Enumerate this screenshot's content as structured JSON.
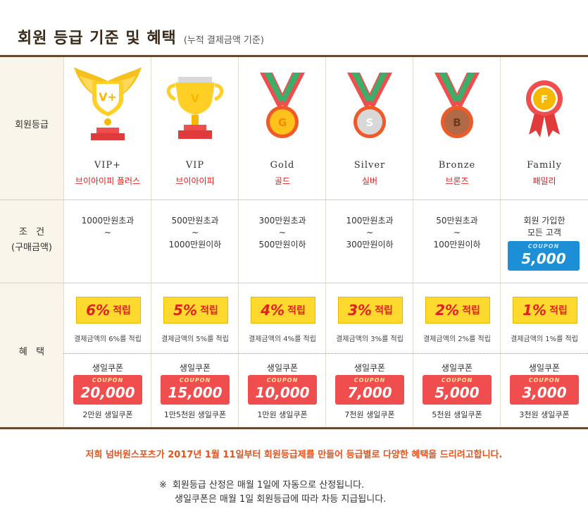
{
  "header": {
    "title": "회원 등급 기준 및 혜택",
    "subtitle": "(누적 결제금액 기준)"
  },
  "rows": {
    "grade": "회원등급",
    "condition_1": "조   건",
    "condition_2": "(구매금액)",
    "benefit": "혜   택"
  },
  "grades": [
    {
      "en": "VIP+",
      "ko": "브이아이피 플러스",
      "icon": "winged-trophy-icon",
      "cond1": "1000만원초과",
      "cond2": "~",
      "cond3": "",
      "pct": "6%",
      "reward": "적립",
      "desc": "결제금액의 6%를 적립",
      "bday_label": "생일쿠폰",
      "coupon_label": "COUPON",
      "coupon_value": "20,000",
      "bday_sub": "2만원 생일쿠폰"
    },
    {
      "en": "VIP",
      "ko": "브이아이피",
      "icon": "trophy-cup-icon",
      "cond1": "500만원초과",
      "cond2": "~",
      "cond3": "1000만원이하",
      "pct": "5%",
      "reward": "적립",
      "desc": "결제금액의 5%를 적립",
      "bday_label": "생일쿠폰",
      "coupon_label": "COUPON",
      "coupon_value": "15,000",
      "bday_sub": "1만5천원 생일쿠폰"
    },
    {
      "en": "Gold",
      "ko": "골드",
      "icon": "gold-medal-icon",
      "cond1": "300만원초과",
      "cond2": "~",
      "cond3": "500만원이하",
      "pct": "4%",
      "reward": "적립",
      "desc": "결제금액의 4%를 적립",
      "bday_label": "생일쿠폰",
      "coupon_label": "COUPON",
      "coupon_value": "10,000",
      "bday_sub": "1만원 생일쿠폰"
    },
    {
      "en": "Silver",
      "ko": "실버",
      "icon": "silver-medal-icon",
      "cond1": "100만원초과",
      "cond2": "~",
      "cond3": "300만원이하",
      "pct": "3%",
      "reward": "적립",
      "desc": "결제금액의 3%를 적립",
      "bday_label": "생일쿠폰",
      "coupon_label": "COUPON",
      "coupon_value": "7,000",
      "bday_sub": "7천원 생일쿠폰"
    },
    {
      "en": "Bronze",
      "ko": "브론즈",
      "icon": "bronze-medal-icon",
      "cond1": "50만원초과",
      "cond2": "~",
      "cond3": "100만원이하",
      "pct": "2%",
      "reward": "적립",
      "desc": "결제금액의 2%를 적립",
      "bday_label": "생일쿠폰",
      "coupon_label": "COUPON",
      "coupon_value": "5,000",
      "bday_sub": "5천원 생일쿠폰"
    },
    {
      "en": "Family",
      "ko": "패밀리",
      "icon": "family-badge-icon",
      "cond1": "회원 가입한",
      "cond2": "모든 고객",
      "cond3": "",
      "join_coupon_label": "COUPON",
      "join_coupon_value": "5,000",
      "pct": "1%",
      "reward": "적립",
      "desc": "결제금액의 1%를 적립",
      "bday_label": "생일쿠폰",
      "coupon_label": "COUPON",
      "coupon_value": "3,000",
      "bday_sub": "3천원 생일쿠폰"
    }
  ],
  "colors": {
    "brand_brown": "#6b4a2b",
    "accent_red": "#e01e1e",
    "coupon_red": "#f04e4e",
    "coupon_blue": "#1c8fd6",
    "reward_yellow": "#ffd92e",
    "notice_orange": "#e8521c"
  },
  "footer": {
    "notice": "저희 넘버원스포츠가 2017년 1월 11일부터 회원등급제를 만들어 등급별로 다양한 혜택을 드리려고합니다.",
    "note_mark": "※",
    "note_1": "회원등급 산정은 매월 1일에 자동으로 산정됩니다.",
    "note_2": "생일쿠폰은 매월 1일 회원등급에 따라 차등 지급됩니다."
  }
}
